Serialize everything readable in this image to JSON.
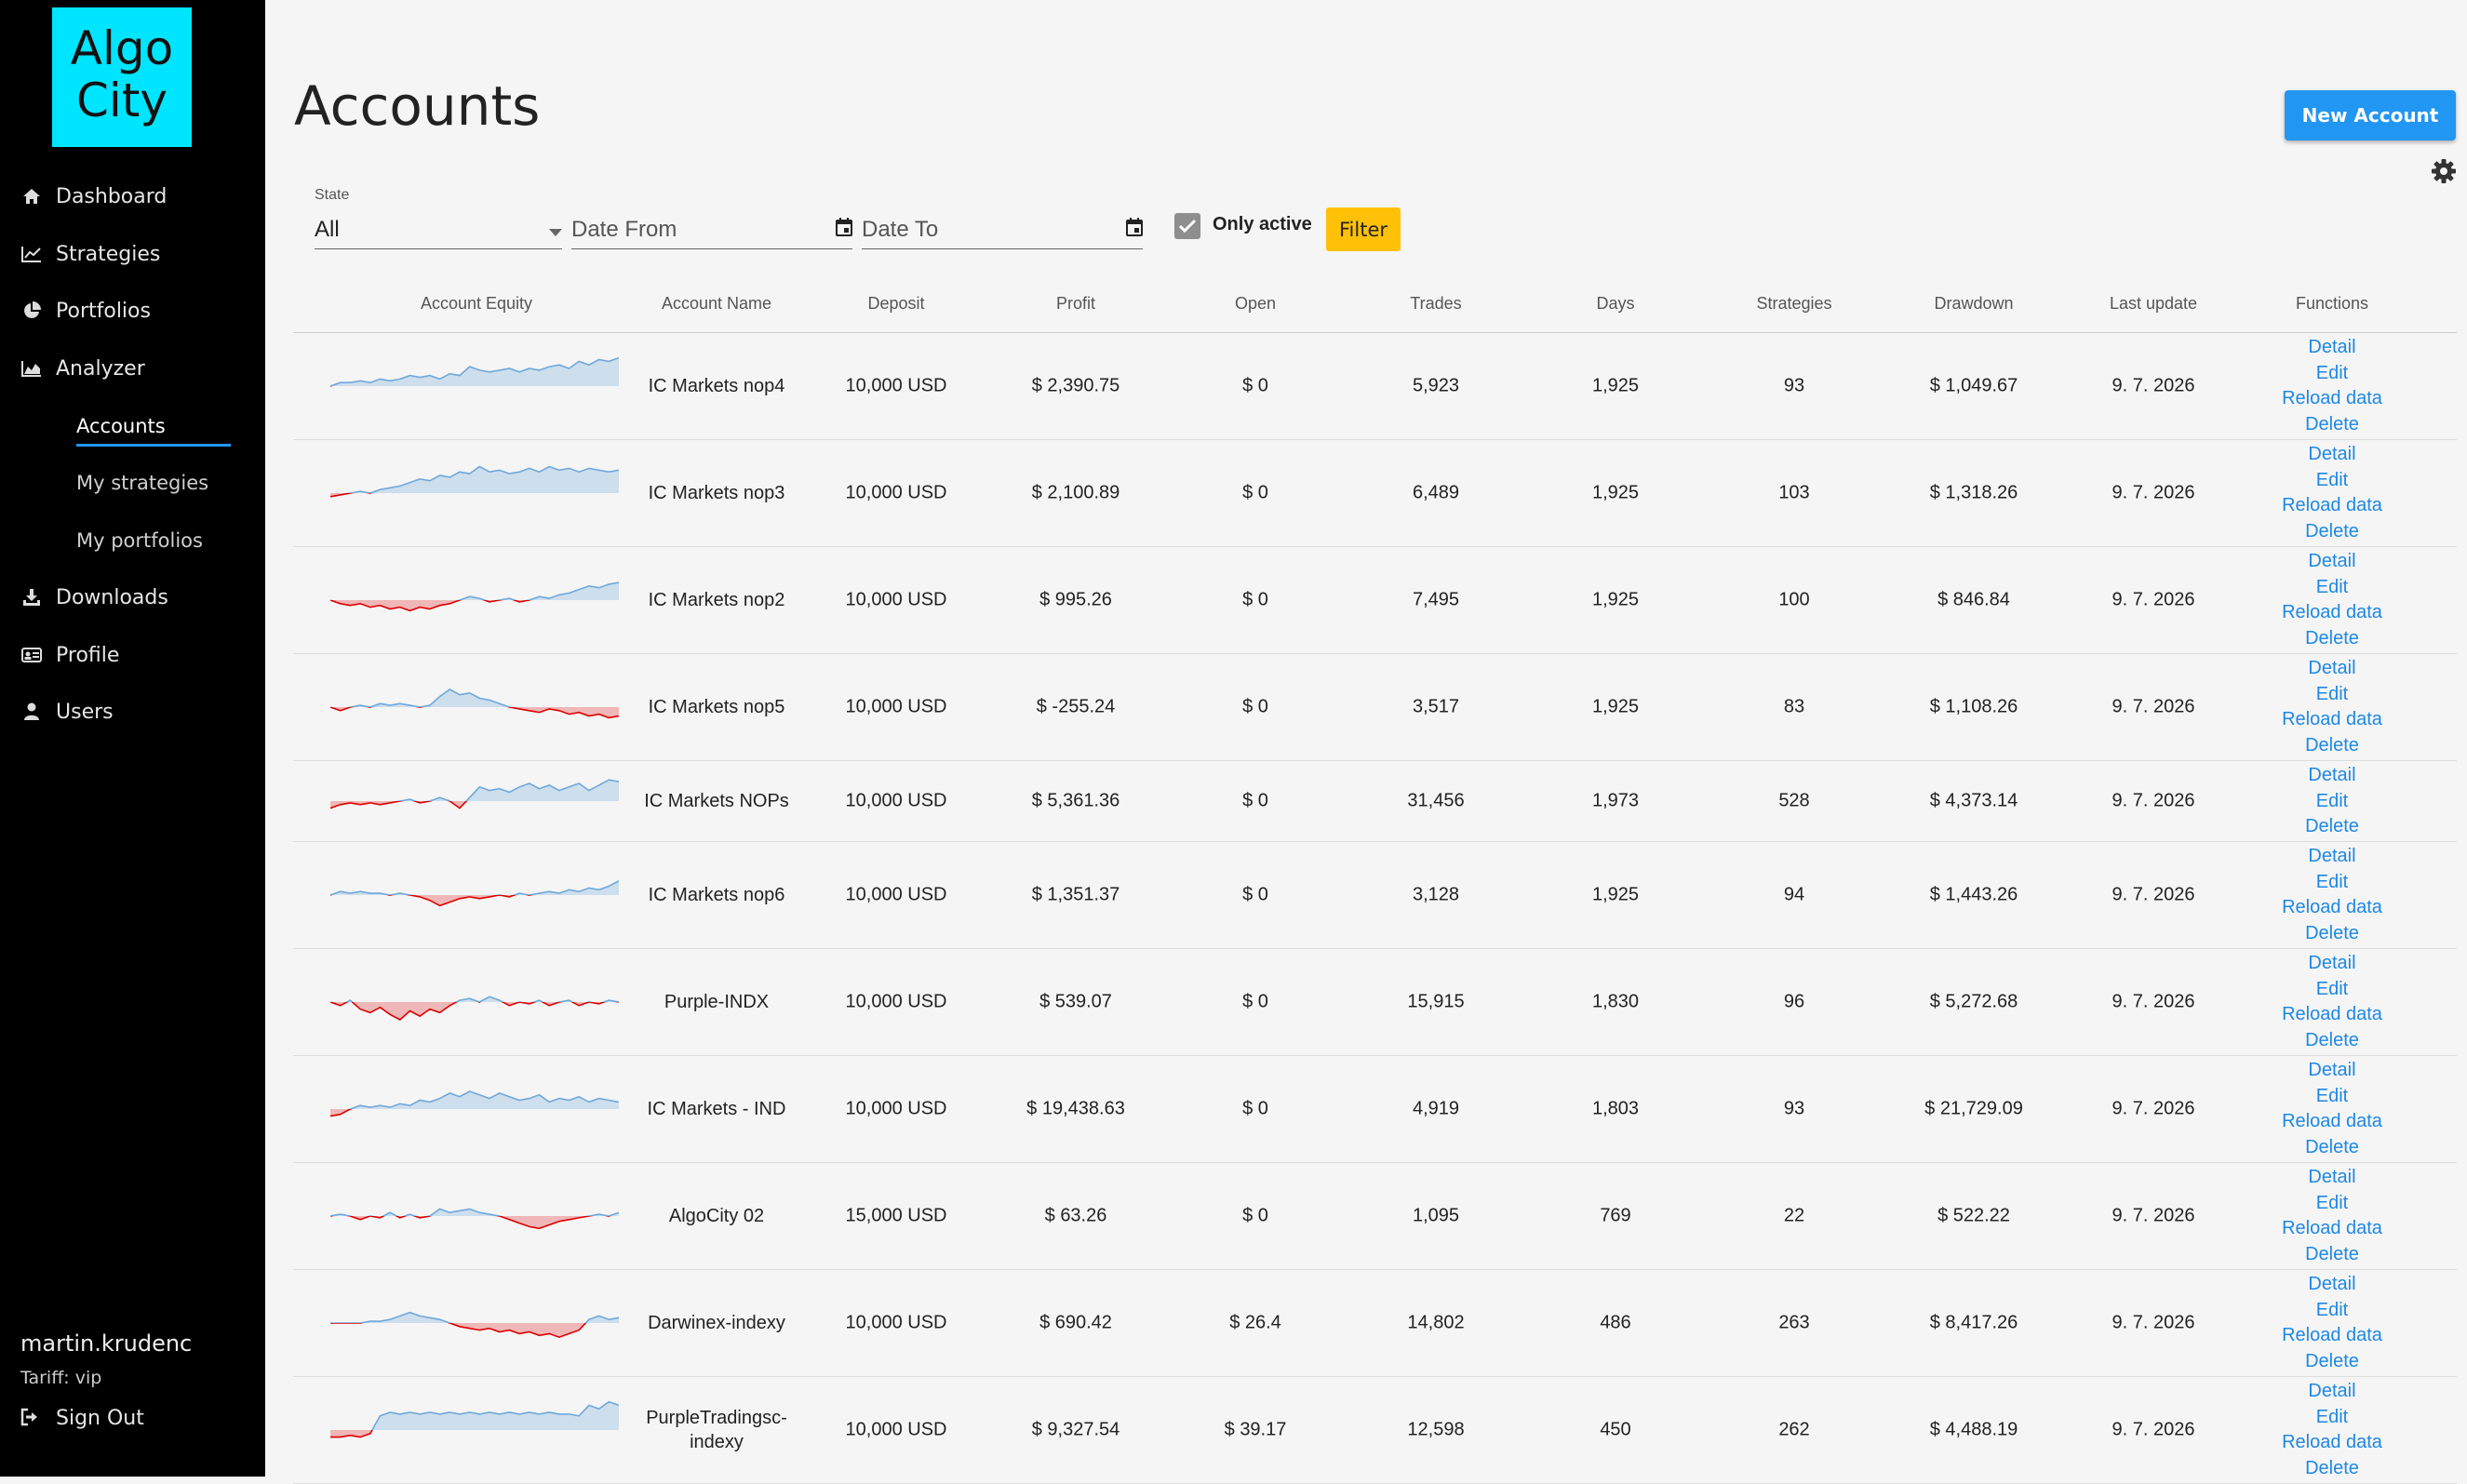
{
  "sidebar": {
    "logo_line1": "Algo",
    "logo_line2": "City",
    "items": [
      {
        "label": "Dashboard",
        "icon": "home-icon"
      },
      {
        "label": "Strategies",
        "icon": "line-chart-icon"
      },
      {
        "label": "Portfolios",
        "icon": "pie-chart-icon"
      },
      {
        "label": "Analyzer",
        "icon": "area-chart-icon"
      }
    ],
    "subitems": [
      {
        "label": "Accounts",
        "active": true
      },
      {
        "label": "My strategies"
      },
      {
        "label": "My portfolios"
      }
    ],
    "items2": [
      {
        "label": "Downloads",
        "icon": "download-icon"
      },
      {
        "label": "Profile",
        "icon": "id-card-icon"
      },
      {
        "label": "Users",
        "icon": "user-icon"
      }
    ],
    "user": "martin.krudenc",
    "tariff": "Tariff: vip",
    "signout": "Sign Out"
  },
  "page": {
    "title": "Accounts",
    "new_button": "New Account"
  },
  "filters": {
    "state_label": "State",
    "state_value": "All",
    "date_from_placeholder": "Date From",
    "date_to_placeholder": "Date To",
    "only_active_label": "Only active",
    "only_active_checked": true,
    "filter_button": "Filter"
  },
  "table": {
    "headers": [
      "Account Equity",
      "Account Name",
      "Deposit",
      "Profit",
      "Open",
      "Trades",
      "Days",
      "Strategies",
      "Drawdown",
      "Last update",
      "Functions"
    ],
    "rows": [
      {
        "name": "IC Markets nop4",
        "deposit": "10,000 USD",
        "profit": "$ 2,390.75",
        "open": "$ 0",
        "trades": "5,923",
        "days": "1,925",
        "strategies": "93",
        "drawdown": "$ 1,049.67",
        "last_update": "9. 7. 2026",
        "functions": [
          "Detail",
          "Edit",
          "Reload data",
          "Delete"
        ]
      },
      {
        "name": "IC Markets nop3",
        "deposit": "10,000 USD",
        "profit": "$ 2,100.89",
        "open": "$ 0",
        "trades": "6,489",
        "days": "1,925",
        "strategies": "103",
        "drawdown": "$ 1,318.26",
        "last_update": "9. 7. 2026",
        "functions": [
          "Detail",
          "Edit",
          "Reload data",
          "Delete"
        ]
      },
      {
        "name": "IC Markets nop2",
        "deposit": "10,000 USD",
        "profit": "$ 995.26",
        "open": "$ 0",
        "trades": "7,495",
        "days": "1,925",
        "strategies": "100",
        "drawdown": "$ 846.84",
        "last_update": "9. 7. 2026",
        "functions": [
          "Detail",
          "Edit",
          "Reload data",
          "Delete"
        ]
      },
      {
        "name": "IC Markets nop5",
        "deposit": "10,000 USD",
        "profit": "$ -255.24",
        "open": "$ 0",
        "trades": "3,517",
        "days": "1,925",
        "strategies": "83",
        "drawdown": "$ 1,108.26",
        "last_update": "9. 7. 2026",
        "functions": [
          "Detail",
          "Edit",
          "Reload data",
          "Delete"
        ]
      },
      {
        "name": "IC Markets NOPs",
        "deposit": "10,000 USD",
        "profit": "$ 5,361.36",
        "open": "$ 0",
        "trades": "31,456",
        "days": "1,973",
        "strategies": "528",
        "drawdown": "$ 4,373.14",
        "last_update": "9. 7. 2026",
        "functions": [
          "Detail",
          "Edit",
          "Delete"
        ]
      },
      {
        "name": "IC Markets nop6",
        "deposit": "10,000 USD",
        "profit": "$ 1,351.37",
        "open": "$ 0",
        "trades": "3,128",
        "days": "1,925",
        "strategies": "94",
        "drawdown": "$ 1,443.26",
        "last_update": "9. 7. 2026",
        "functions": [
          "Detail",
          "Edit",
          "Reload data",
          "Delete"
        ]
      },
      {
        "name": "Purple-INDX",
        "deposit": "10,000 USD",
        "profit": "$ 539.07",
        "open": "$ 0",
        "trades": "15,915",
        "days": "1,830",
        "strategies": "96",
        "drawdown": "$ 5,272.68",
        "last_update": "9. 7. 2026",
        "functions": [
          "Detail",
          "Edit",
          "Reload data",
          "Delete"
        ]
      },
      {
        "name": "IC Markets - IND",
        "deposit": "10,000 USD",
        "profit": "$ 19,438.63",
        "open": "$ 0",
        "trades": "4,919",
        "days": "1,803",
        "strategies": "93",
        "drawdown": "$ 21,729.09",
        "last_update": "9. 7. 2026",
        "functions": [
          "Detail",
          "Edit",
          "Reload data",
          "Delete"
        ]
      },
      {
        "name": "AlgoCity 02",
        "deposit": "15,000 USD",
        "profit": "$ 63.26",
        "open": "$ 0",
        "trades": "1,095",
        "days": "769",
        "strategies": "22",
        "drawdown": "$ 522.22",
        "last_update": "9. 7. 2026",
        "functions": [
          "Detail",
          "Edit",
          "Reload data",
          "Delete"
        ]
      },
      {
        "name": "Darwinex-indexy",
        "deposit": "10,000 USD",
        "profit": "$ 690.42",
        "open": "$ 26.4",
        "trades": "14,802",
        "days": "486",
        "strategies": "263",
        "drawdown": "$ 8,417.26",
        "last_update": "9. 7. 2026",
        "functions": [
          "Detail",
          "Edit",
          "Reload data",
          "Delete"
        ]
      },
      {
        "name": "PurpleTradingsc-indexy",
        "deposit": "10,000 USD",
        "profit": "$ 9,327.54",
        "open": "$ 39.17",
        "trades": "12,598",
        "days": "450",
        "strategies": "262",
        "drawdown": "$ 4,488.19",
        "last_update": "9. 7. 2026",
        "functions": [
          "Detail",
          "Edit",
          "Reload data",
          "Delete"
        ]
      }
    ]
  },
  "colors": {
    "accent": "#2196f3",
    "logo_bg": "#00e5ff",
    "filter_btn": "#ffc107",
    "link": "#1e88e5",
    "equity_up": "#6fa8dc",
    "equity_down": "#e00000"
  }
}
